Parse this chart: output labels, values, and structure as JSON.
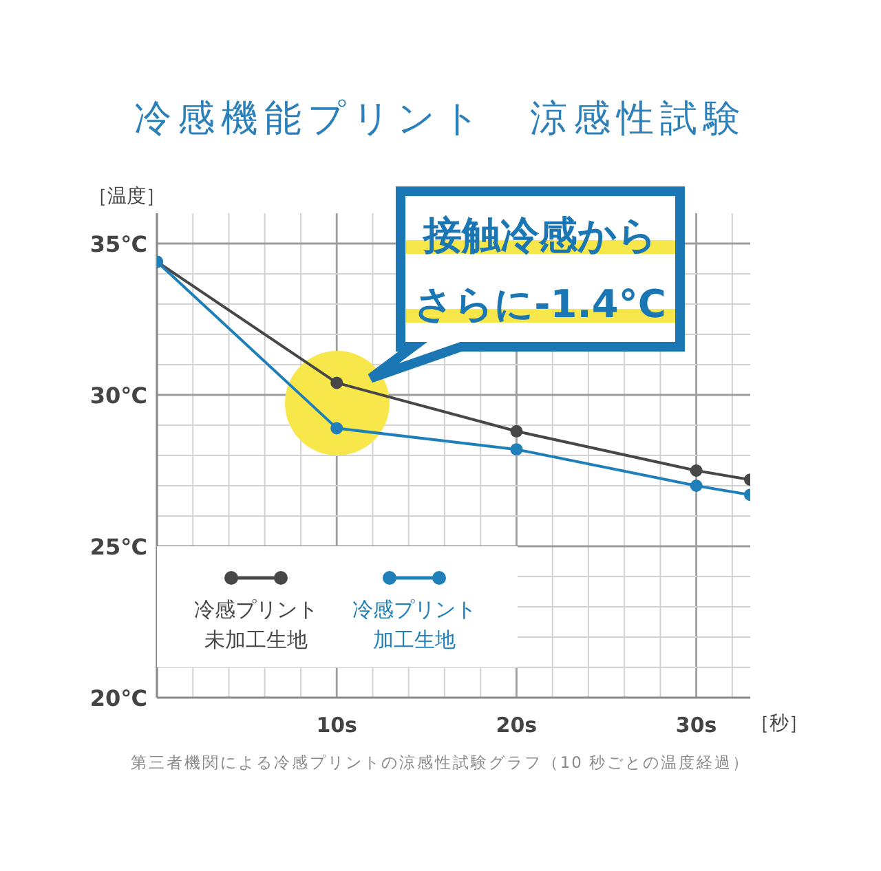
{
  "chart_data": {
    "type": "line",
    "title": "冷感機能プリント　涼感性試験",
    "ylabel": "［温度］",
    "xlabel": "［秒］",
    "x": [
      0,
      10,
      20,
      30,
      33
    ],
    "series": [
      {
        "name": "冷感プリント未加工生地",
        "color": "#474747",
        "values": [
          34.4,
          30.4,
          28.8,
          27.5,
          27.2
        ]
      },
      {
        "name": "冷感プリント加工生地",
        "color": "#1f7fb8",
        "values": [
          34.4,
          28.9,
          28.2,
          27.0,
          26.7
        ]
      }
    ],
    "xlim": [
      0,
      33
    ],
    "ylim": [
      20,
      36
    ],
    "xticks": [
      {
        "value": 0,
        "label": null
      },
      {
        "value": 2,
        "label": null
      },
      {
        "value": 4,
        "label": null
      },
      {
        "value": 6,
        "label": null
      },
      {
        "value": 8,
        "label": null
      },
      {
        "value": 10,
        "label": "10s"
      },
      {
        "value": 12,
        "label": null
      },
      {
        "value": 14,
        "label": null
      },
      {
        "value": 16,
        "label": null
      },
      {
        "value": 18,
        "label": null
      },
      {
        "value": 20,
        "label": "20s"
      },
      {
        "value": 22,
        "label": null
      },
      {
        "value": 24,
        "label": null
      },
      {
        "value": 26,
        "label": null
      },
      {
        "value": 28,
        "label": null
      },
      {
        "value": 30,
        "label": "30s"
      },
      {
        "value": 32,
        "label": null
      }
    ],
    "yticks": [
      {
        "value": 20,
        "label": "20℃"
      },
      {
        "value": 21,
        "label": null
      },
      {
        "value": 22,
        "label": null
      },
      {
        "value": 23,
        "label": null
      },
      {
        "value": 24,
        "label": null
      },
      {
        "value": 25,
        "label": "25℃"
      },
      {
        "value": 26,
        "label": null
      },
      {
        "value": 27,
        "label": null
      },
      {
        "value": 28,
        "label": null
      },
      {
        "value": 29,
        "label": null
      },
      {
        "value": 30,
        "label": "30℃"
      },
      {
        "value": 31,
        "label": null
      },
      {
        "value": 32,
        "label": null
      },
      {
        "value": 33,
        "label": null
      },
      {
        "value": 34,
        "label": null
      },
      {
        "value": 35,
        "label": "35℃"
      }
    ],
    "grid": true,
    "legend": "bottom left",
    "marker": "circle",
    "line_style": "solid",
    "annotations": [
      "接触冷感からさらに-1.4°C",
      "第三者機関による冷感プリントの涼感性試験グラフ（10 秒ごとの温度経過）"
    ]
  }
}
